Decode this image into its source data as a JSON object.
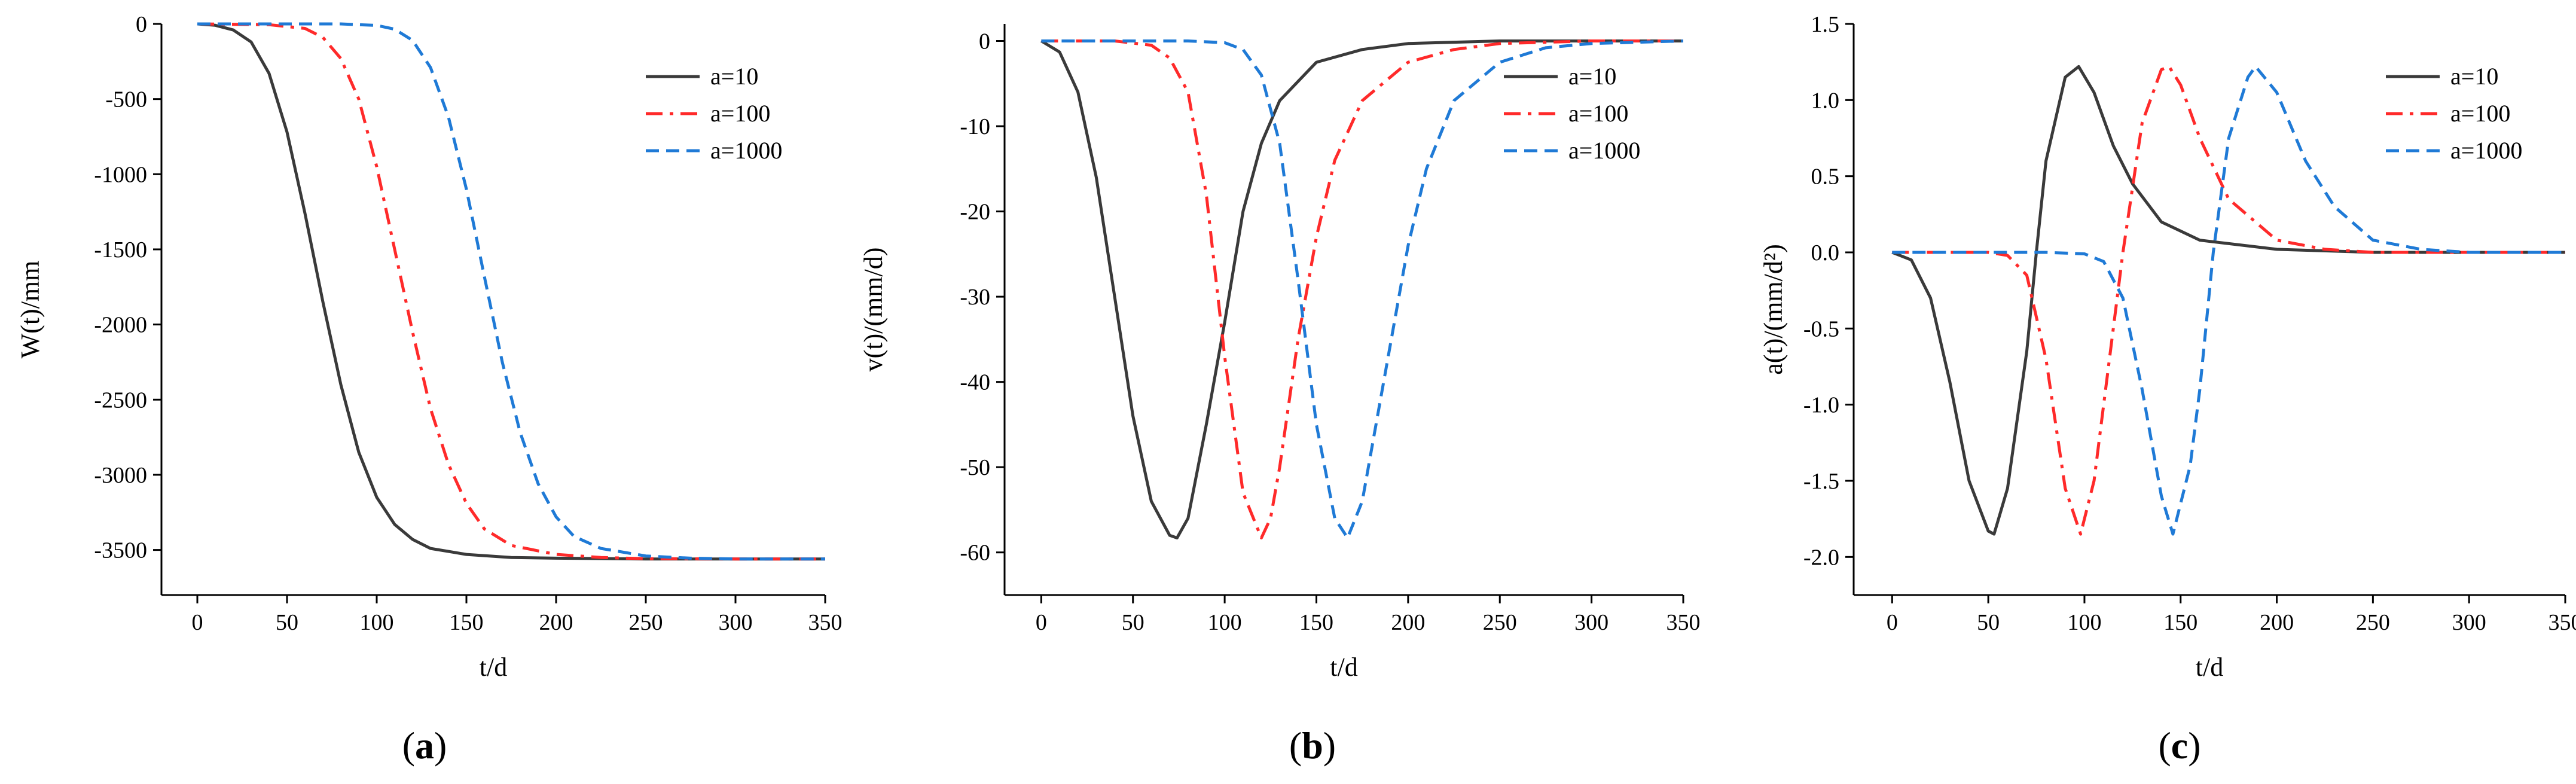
{
  "colors": {
    "axis": "#000000",
    "a10": "#3a3a3a",
    "a100": "#ff2a2a",
    "a1000": "#1f7ad6"
  },
  "chart_data": [
    {
      "type": "line",
      "panel_label": "a",
      "xlabel": "t/d",
      "ylabel": "W(t)/mm",
      "xlim": [
        -20,
        350
      ],
      "ylim": [
        -3800,
        0
      ],
      "xticks": [
        0,
        50,
        100,
        150,
        200,
        250,
        300,
        350
      ],
      "yticks": [
        0,
        -500,
        -1000,
        -1500,
        -2000,
        -2500,
        -3000,
        -3500
      ],
      "legend": "top-right",
      "series": [
        {
          "name": "a=10",
          "color": "#3a3a3a",
          "dash": "",
          "x": [
            0,
            10,
            20,
            30,
            40,
            50,
            60,
            70,
            80,
            90,
            100,
            110,
            120,
            130,
            150,
            175,
            200,
            250,
            300,
            350
          ],
          "y": [
            0,
            -9,
            -40,
            -120,
            -330,
            -720,
            -1260,
            -1850,
            -2400,
            -2850,
            -3150,
            -3330,
            -3430,
            -3490,
            -3530,
            -3550,
            -3555,
            -3560,
            -3560,
            -3560
          ]
        },
        {
          "name": "a=100",
          "color": "#ff2a2a",
          "dash": "28 12 6 12",
          "x": [
            0,
            40,
            60,
            70,
            80,
            90,
            100,
            110,
            120,
            130,
            140,
            150,
            160,
            175,
            200,
            225,
            250,
            300,
            350
          ],
          "y": [
            0,
            -5,
            -30,
            -90,
            -230,
            -500,
            -950,
            -1500,
            -2050,
            -2560,
            -2930,
            -3190,
            -3360,
            -3470,
            -3530,
            -3550,
            -3558,
            -3560,
            -3560
          ]
        },
        {
          "name": "a=1000",
          "color": "#1f7ad6",
          "dash": "22 12",
          "x": [
            0,
            80,
            100,
            110,
            120,
            130,
            140,
            150,
            160,
            170,
            180,
            190,
            200,
            210,
            225,
            250,
            275,
            300,
            350
          ],
          "y": [
            0,
            0,
            -10,
            -35,
            -110,
            -290,
            -620,
            -1100,
            -1680,
            -2250,
            -2720,
            -3060,
            -3280,
            -3410,
            -3490,
            -3540,
            -3555,
            -3560,
            -3560
          ]
        }
      ]
    },
    {
      "type": "line",
      "panel_label": "b",
      "xlabel": "t/d",
      "ylabel": "v(t)/(mm/d)",
      "xlim": [
        -20,
        350
      ],
      "ylim": [
        -65,
        2
      ],
      "xticks": [
        0,
        50,
        100,
        150,
        200,
        250,
        300,
        350
      ],
      "yticks": [
        0,
        -10,
        -20,
        -30,
        -40,
        -50,
        -60
      ],
      "legend": "top-right",
      "series": [
        {
          "name": "a=10",
          "color": "#3a3a3a",
          "dash": "",
          "x": [
            0,
            10,
            20,
            30,
            40,
            50,
            60,
            70,
            74,
            80,
            90,
            100,
            110,
            120,
            130,
            150,
            175,
            200,
            250,
            300,
            350
          ],
          "y": [
            0,
            -1.3,
            -6,
            -16,
            -30,
            -44,
            -54,
            -58,
            -58.3,
            -56,
            -45,
            -33,
            -20,
            -12,
            -7,
            -2.5,
            -1,
            -0.3,
            0,
            0,
            0
          ]
        },
        {
          "name": "a=100",
          "color": "#ff2a2a",
          "dash": "28 12 6 12",
          "x": [
            0,
            40,
            60,
            70,
            80,
            90,
            100,
            110,
            120,
            125,
            130,
            140,
            150,
            160,
            175,
            200,
            225,
            250,
            300,
            350
          ],
          "y": [
            0,
            0,
            -0.5,
            -2,
            -6,
            -18,
            -37,
            -53,
            -58.3,
            -56,
            -50,
            -35,
            -23,
            -14,
            -7,
            -2.5,
            -1,
            -0.3,
            0,
            0
          ]
        },
        {
          "name": "a=1000",
          "color": "#1f7ad6",
          "dash": "22 12",
          "x": [
            0,
            80,
            100,
            110,
            120,
            130,
            140,
            150,
            160,
            167,
            175,
            180,
            190,
            200,
            210,
            225,
            250,
            275,
            300,
            350
          ],
          "y": [
            0,
            0,
            -0.2,
            -1,
            -4,
            -12,
            -28,
            -45,
            -56,
            -58.3,
            -54,
            -48,
            -36,
            -24,
            -15,
            -7,
            -2.5,
            -0.8,
            -0.3,
            0
          ]
        }
      ]
    },
    {
      "type": "line",
      "panel_label": "c",
      "xlabel": "t/d",
      "ylabel": "a(t)/(mm/d²)",
      "xlim": [
        -20,
        350
      ],
      "ylim": [
        -2.25,
        1.5
      ],
      "xticks": [
        0,
        50,
        100,
        150,
        200,
        250,
        300,
        350
      ],
      "yticks": [
        1.5,
        1.0,
        0.5,
        0.0,
        -0.5,
        -1.0,
        -1.5,
        -2.0
      ],
      "legend": "top-right",
      "series": [
        {
          "name": "a=10",
          "color": "#3a3a3a",
          "dash": "",
          "x": [
            0,
            10,
            20,
            30,
            40,
            50,
            53,
            60,
            70,
            75,
            80,
            90,
            97,
            105,
            115,
            125,
            140,
            160,
            200,
            250,
            300,
            350
          ],
          "y": [
            0,
            -0.05,
            -0.3,
            -0.85,
            -1.5,
            -1.83,
            -1.85,
            -1.55,
            -0.65,
            0,
            0.6,
            1.15,
            1.22,
            1.05,
            0.7,
            0.45,
            0.2,
            0.08,
            0.02,
            0,
            0,
            0
          ]
        },
        {
          "name": "a=100",
          "color": "#ff2a2a",
          "dash": "28 12 6 12",
          "x": [
            0,
            50,
            60,
            70,
            80,
            90,
            98,
            105,
            115,
            120,
            130,
            140,
            144,
            150,
            160,
            175,
            200,
            225,
            250,
            300,
            350
          ],
          "y": [
            0,
            0,
            -0.02,
            -0.15,
            -0.7,
            -1.55,
            -1.85,
            -1.5,
            -0.5,
            0,
            0.85,
            1.2,
            1.22,
            1.1,
            0.75,
            0.35,
            0.08,
            0.02,
            0,
            0,
            0
          ]
        },
        {
          "name": "a=1000",
          "color": "#1f7ad6",
          "dash": "22 12",
          "x": [
            0,
            80,
            100,
            110,
            120,
            130,
            140,
            146,
            155,
            160,
            167,
            175,
            185,
            189,
            200,
            215,
            230,
            250,
            275,
            300,
            350
          ],
          "y": [
            0,
            0,
            -0.01,
            -0.06,
            -0.3,
            -0.9,
            -1.6,
            -1.85,
            -1.4,
            -0.9,
            0,
            0.75,
            1.15,
            1.22,
            1.05,
            0.6,
            0.3,
            0.08,
            0.02,
            0,
            0
          ]
        }
      ]
    }
  ]
}
